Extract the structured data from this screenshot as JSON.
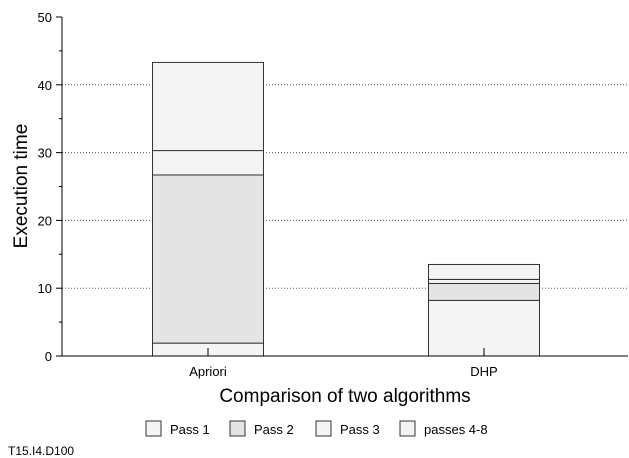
{
  "chart_data": {
    "type": "bar",
    "stacked": true,
    "categories": [
      "Apriori",
      "DHP"
    ],
    "series": [
      {
        "name": "Pass 1",
        "values": [
          1.9,
          8.2
        ],
        "color": "#f4f4f4"
      },
      {
        "name": "Pass 2",
        "values": [
          24.8,
          2.5
        ],
        "color": "#e4e4e4"
      },
      {
        "name": "Pass 3",
        "values": [
          3.6,
          0.6
        ],
        "color": "#f4f4f4"
      },
      {
        "name": "passes 4-8",
        "values": [
          13.0,
          2.2
        ],
        "color": "#f4f4f4"
      }
    ],
    "xlabel": "Comparison of two algorithms",
    "ylabel": "Execution time",
    "ylim": [
      0,
      50
    ],
    "yticks": [
      "0",
      "10",
      "20",
      "30",
      "40",
      "50"
    ],
    "grid": "horizontal dotted",
    "legend_position": "bottom"
  },
  "footer_note": "T15.I4.D100"
}
